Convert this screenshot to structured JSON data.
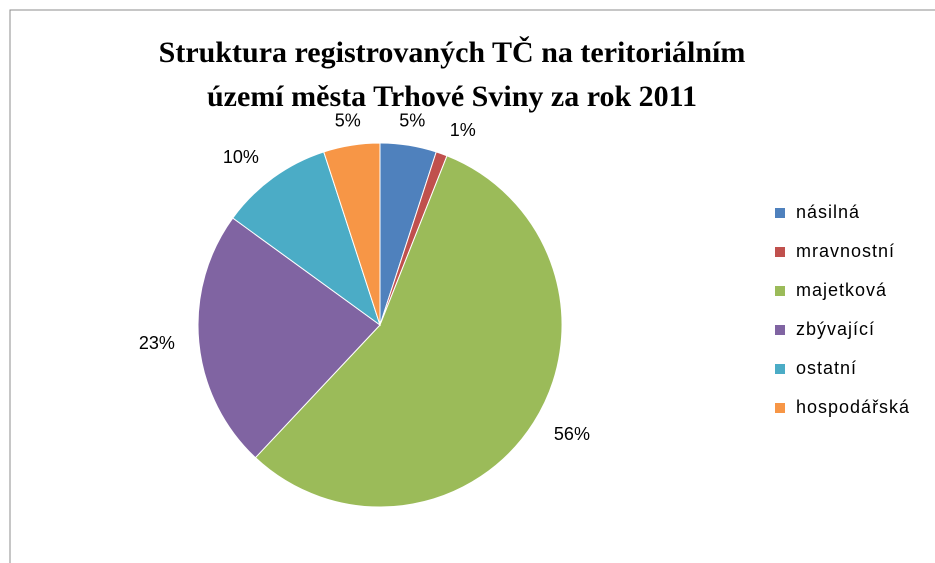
{
  "chart_data": {
    "type": "pie",
    "title": [
      "Struktura registrovaných TČ na teritoriálním",
      "území města Trhové Sviny za rok 2011"
    ],
    "categories": [
      "násilná",
      "mravnostní",
      "majetková",
      "zbývající",
      "ostatní",
      "hospodářská"
    ],
    "values": [
      5,
      1,
      56,
      23,
      10,
      5
    ],
    "value_labels": [
      "5%",
      "1%",
      "56%",
      "23%",
      "10%",
      "5%"
    ],
    "colors": [
      "#4f81bd",
      "#c0504d",
      "#9bbb59",
      "#8064a2",
      "#4bacc6",
      "#f79646"
    ],
    "legend": "right"
  }
}
